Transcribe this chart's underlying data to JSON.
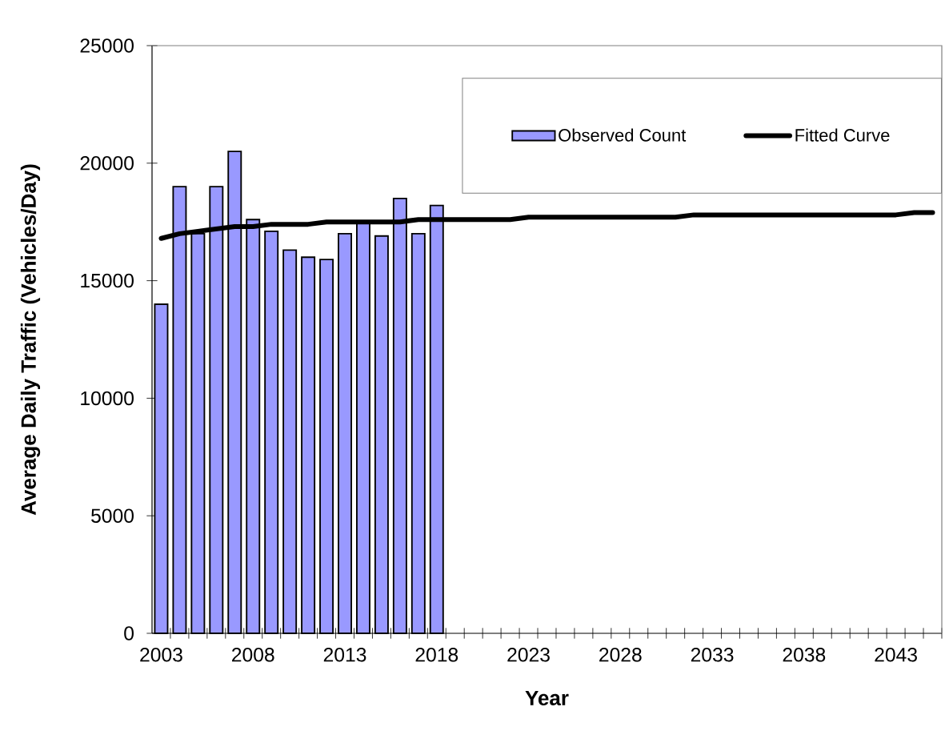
{
  "chart_data": {
    "type": "bar",
    "xlabel": "Year",
    "ylabel": "Average Daily Traffic (Vehicles/Day)",
    "categories": [
      "2003",
      null,
      null,
      null,
      null,
      "2008",
      null,
      null,
      null,
      null,
      "2013",
      null,
      null,
      null,
      null,
      "2018",
      null,
      null,
      null,
      null,
      "2023",
      null,
      null,
      null,
      null,
      "2028",
      null,
      null,
      null,
      null,
      "2033",
      null,
      null,
      null,
      null,
      "2038",
      null,
      null,
      null,
      null,
      "2043",
      null,
      null
    ],
    "series": [
      {
        "name": "Observed Count",
        "color": "#9999ff",
        "values": [
          14000,
          19000,
          17000,
          19000,
          20500,
          17600,
          17100,
          16300,
          16000,
          15900,
          17000,
          17500,
          16900,
          18500,
          17000,
          18200,
          null,
          null,
          null,
          null,
          null,
          null,
          null,
          null,
          null,
          null,
          null,
          null,
          null,
          null,
          null,
          null,
          null,
          null,
          null,
          null,
          null,
          null,
          null,
          null,
          null,
          null,
          null
        ]
      },
      {
        "name": "Fitted Curve",
        "type": "line",
        "color": "#000000",
        "values": [
          16800,
          17000,
          17100,
          17200,
          17300,
          17300,
          17400,
          17400,
          17400,
          17500,
          17500,
          17500,
          17500,
          17500,
          17600,
          17600,
          17600,
          17600,
          17600,
          17600,
          17700,
          17700,
          17700,
          17700,
          17700,
          17700,
          17700,
          17700,
          17700,
          17800,
          17800,
          17800,
          17800,
          17800,
          17800,
          17800,
          17800,
          17800,
          17800,
          17800,
          17800,
          17900,
          17900
        ]
      }
    ],
    "ylim": [
      0,
      25000
    ],
    "yticks": [
      0,
      5000,
      10000,
      15000,
      20000,
      25000
    ],
    "legend": "top right"
  }
}
